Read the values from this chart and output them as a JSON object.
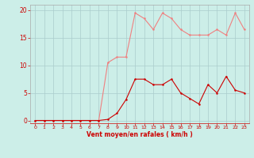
{
  "x": [
    0,
    1,
    2,
    3,
    4,
    5,
    6,
    7,
    8,
    9,
    10,
    11,
    12,
    13,
    14,
    15,
    16,
    17,
    18,
    19,
    20,
    21,
    22,
    23
  ],
  "y_rafales": [
    0,
    0,
    0,
    0,
    0,
    0,
    0,
    0,
    10.5,
    11.5,
    11.5,
    19.5,
    18.5,
    16.5,
    19.5,
    18.5,
    16.5,
    15.5,
    15.5,
    15.5,
    16.5,
    15.5,
    19.5,
    16.5
  ],
  "y_moyen": [
    0,
    0,
    0,
    0,
    0,
    0,
    0,
    0,
    0.2,
    1.3,
    3.8,
    7.5,
    7.5,
    6.5,
    6.5,
    7.5,
    5,
    4,
    3,
    6.5,
    5,
    8,
    5.5,
    5
  ],
  "line_color_rafales": "#f08080",
  "line_color_moyen": "#cc0000",
  "bg_color": "#cceee8",
  "grid_color": "#aacccc",
  "xlabel": "Vent moyen/en rafales ( km/h )",
  "xlabel_color": "#cc0000",
  "tick_color": "#cc0000",
  "spine_color": "#aaaaaa",
  "ylim": [
    -0.5,
    21
  ],
  "xlim": [
    -0.5,
    23.5
  ],
  "yticks": [
    0,
    5,
    10,
    15,
    20
  ],
  "xticks": [
    0,
    1,
    2,
    3,
    4,
    5,
    6,
    7,
    8,
    9,
    10,
    11,
    12,
    13,
    14,
    15,
    16,
    17,
    18,
    19,
    20,
    21,
    22,
    23
  ]
}
